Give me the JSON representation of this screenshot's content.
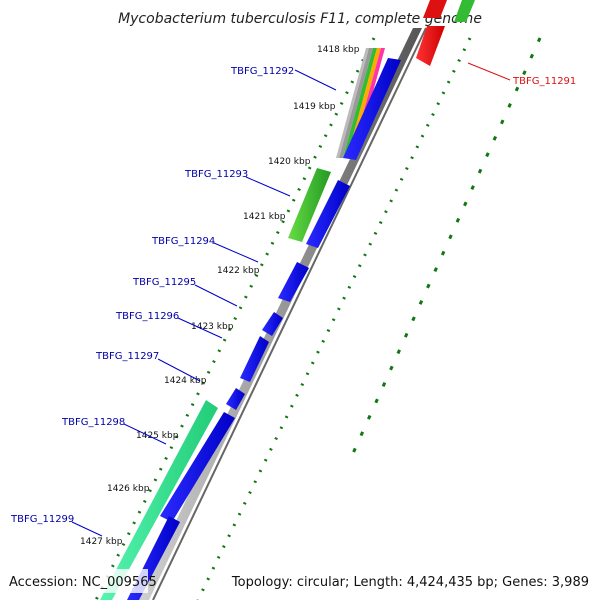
{
  "title": "Mycobacterium tuberculosis F11, complete genome",
  "footer": {
    "accession": "Accession: NC_009565",
    "topology": "Topology: circular; Length: 4,424,435 bp; Genes: 3,989"
  },
  "ticks": [
    "1418 kbp",
    "1419 kbp",
    "1420 kbp",
    "1421 kbp",
    "1422 kbp",
    "1423 kbp",
    "1424 kbp",
    "1425 kbp",
    "1426 kbp",
    "1427 kbp"
  ],
  "genes": [
    {
      "id": "TBFG_11291",
      "color": "#dd1111"
    },
    {
      "id": "TBFG_11292",
      "color": "#0000aa"
    },
    {
      "id": "TBFG_11293",
      "color": "#0000aa"
    },
    {
      "id": "TBFG_11294",
      "color": "#0000aa"
    },
    {
      "id": "TBFG_11295",
      "color": "#0000aa"
    },
    {
      "id": "TBFG_11296",
      "color": "#0000aa"
    },
    {
      "id": "TBFG_11297",
      "color": "#0000aa"
    },
    {
      "id": "TBFG_11298",
      "color": "#0000aa"
    },
    {
      "id": "TBFG_11299",
      "color": "#0000aa"
    }
  ],
  "colors": {
    "forward_cds": "#1010ee",
    "reverse_cds": "#ee1111",
    "green_feature": "#33bb33",
    "aquamarine_feature": "#33ee99",
    "backbone": "#888888",
    "dots": "#117711"
  }
}
